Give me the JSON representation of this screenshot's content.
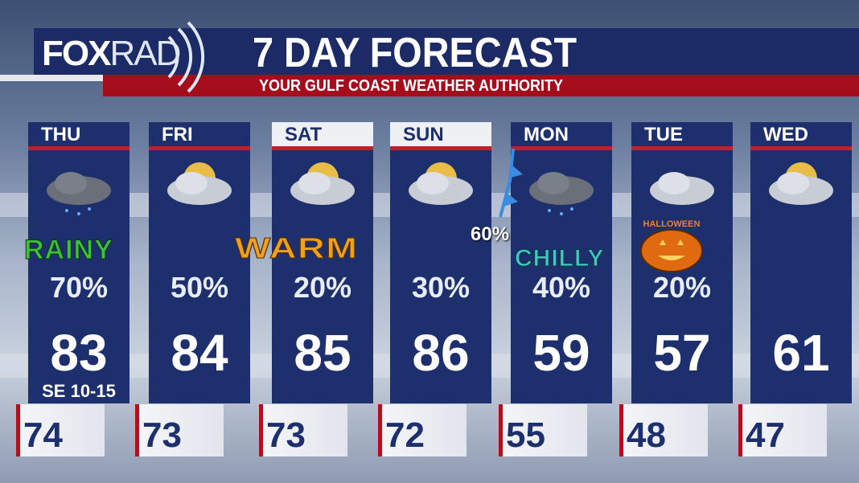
{
  "header": {
    "logo": "FOX",
    "logo_suffix": "RAD",
    "title": "7 DAY FORECAST",
    "subtitle": "YOUR GULF COAST WEATHER AUTHORITY"
  },
  "colors": {
    "panel": "#1e2f6e",
    "accent": "#c0202e"
  },
  "days": [
    {
      "day": "THU",
      "icon": "rain-cloud-icon",
      "precip": "70%",
      "high": "83",
      "low": "74",
      "wind": "SE 10-15",
      "tag": "RAINY"
    },
    {
      "day": "FRI",
      "icon": "partly-sunny-storm-icon",
      "precip": "50%",
      "high": "84",
      "low": "73"
    },
    {
      "day": "SAT",
      "icon": "partly-sunny-icon",
      "precip": "20%",
      "high": "85",
      "low": "73",
      "tag": "WARM"
    },
    {
      "day": "SUN",
      "icon": "partly-sunny-icon",
      "precip": "30%",
      "high": "86",
      "low": "72"
    },
    {
      "day": "MON",
      "icon": "rain-cloud-icon",
      "precip": "40%",
      "high": "59",
      "low": "55",
      "tag": "CHILLY"
    },
    {
      "day": "TUE",
      "icon": "cloudy-icon",
      "precip": "20%",
      "high": "57",
      "low": "48",
      "tag": "HALLOWEEN"
    },
    {
      "day": "WED",
      "icon": "partly-sunny-icon",
      "precip": "",
      "high": "61",
      "low": "47"
    }
  ],
  "front": {
    "label": "60%",
    "icon": "cold-front-icon"
  }
}
